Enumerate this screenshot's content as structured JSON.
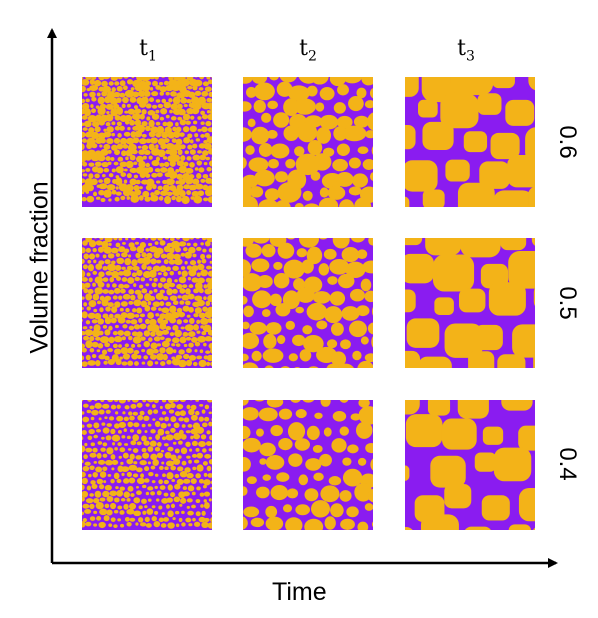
{
  "axes": {
    "x_title": "Time",
    "y_title": "Volume fraction"
  },
  "columns": [
    {
      "base": "t",
      "sub": "1"
    },
    {
      "base": "t",
      "sub": "2"
    },
    {
      "base": "t",
      "sub": "3"
    }
  ],
  "rows": [
    "0.6",
    "0.5",
    "0.4"
  ],
  "colors": {
    "matrix": "#8a1cf0",
    "droplet": "#f3b318",
    "axis": "#000000"
  }
}
